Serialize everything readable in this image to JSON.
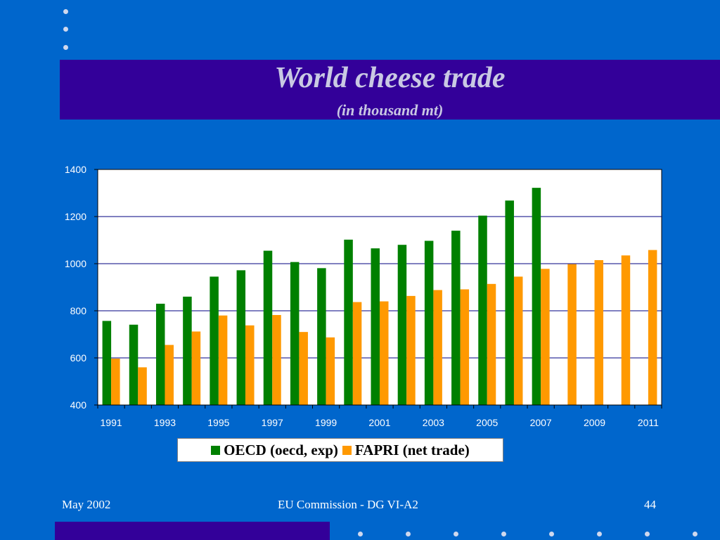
{
  "slide": {
    "title": "World cheese trade",
    "subtitle": "(in thousand mt)"
  },
  "footer": {
    "date": "May 2002",
    "organization": "EU Commission - DG VI-A2",
    "page_number": "44"
  },
  "colors": {
    "background": "#0066cc",
    "title_band": "#330099",
    "oecd": "#008000",
    "fapri": "#ff9900"
  },
  "chart_data": {
    "type": "bar",
    "categories": [
      "1991",
      "1992",
      "1993",
      "1994",
      "1995",
      "1996",
      "1997",
      "1998",
      "1999",
      "2000",
      "2001",
      "2002",
      "2003",
      "2004",
      "2005",
      "2006",
      "2007",
      "2008",
      "2009",
      "2010",
      "2011"
    ],
    "x_tick_labels": [
      "1991",
      "1993",
      "1995",
      "1997",
      "1999",
      "2001",
      "2003",
      "2005",
      "2007",
      "2009",
      "2011"
    ],
    "ylim": [
      400,
      1400
    ],
    "y_ticks": [
      400,
      600,
      800,
      1000,
      1200,
      1400
    ],
    "grid": true,
    "legend_position": "bottom",
    "series": [
      {
        "name": "OECD (oecd, exp)",
        "values": [
          757,
          741,
          830,
          860,
          945,
          972,
          1055,
          1007,
          981,
          1102,
          1065,
          1080,
          1097,
          1140,
          1204,
          1268,
          1322,
          null,
          null,
          null,
          null
        ]
      },
      {
        "name": "FAPRI (net trade)",
        "values": [
          597,
          560,
          655,
          712,
          780,
          738,
          782,
          710,
          687,
          837,
          840,
          863,
          888,
          891,
          914,
          945,
          978,
          998,
          1015,
          1035,
          1058
        ]
      }
    ]
  }
}
